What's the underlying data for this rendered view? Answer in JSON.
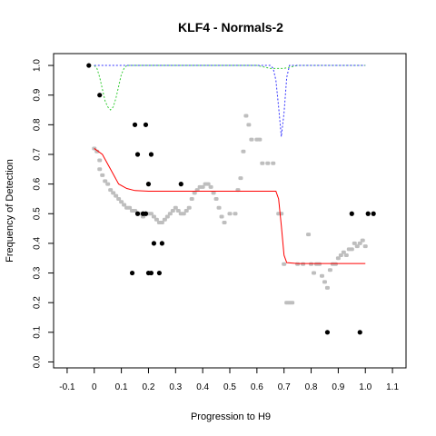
{
  "chart_data": {
    "type": "scatter",
    "title": "KLF4 - Normals-2",
    "xlabel": "Progression to H9",
    "ylabel": "Frequency of Detection",
    "xlim": [
      -0.15,
      1.15
    ],
    "ylim": [
      -0.02,
      1.04
    ],
    "x_ticks": [
      "-0.1",
      "0",
      "0.1",
      "0.2",
      "0.3",
      "0.4",
      "0.5",
      "0.6",
      "0.7",
      "0.8",
      "0.9",
      "1.0",
      "1.1"
    ],
    "x_tick_values": [
      -0.1,
      0,
      0.1,
      0.2,
      0.3,
      0.4,
      0.5,
      0.6,
      0.7,
      0.8,
      0.9,
      1.0,
      1.1
    ],
    "y_ticks": [
      "0.0",
      "0.1",
      "0.2",
      "0.3",
      "0.4",
      "0.5",
      "0.6",
      "0.7",
      "0.8",
      "0.9",
      "1.0"
    ],
    "y_tick_values": [
      0,
      0.1,
      0.2,
      0.3,
      0.4,
      0.5,
      0.6,
      0.7,
      0.8,
      0.9,
      1.0
    ],
    "grid": false,
    "colors": {
      "black_points": "#000000",
      "gray_points": "#bebebe",
      "red_fit": "#ff0000",
      "green_curve": "#33cc33",
      "blue_curve": "#3333ff"
    },
    "series": [
      {
        "kind": "points",
        "color": "black_points",
        "points": [
          [
            -0.02,
            1.0
          ],
          [
            0.02,
            0.9
          ],
          [
            0.15,
            0.8
          ],
          [
            0.19,
            0.8
          ],
          [
            0.16,
            0.7
          ],
          [
            0.21,
            0.7
          ],
          [
            0.2,
            0.6
          ],
          [
            0.32,
            0.6
          ],
          [
            0.16,
            0.5
          ],
          [
            0.18,
            0.5
          ],
          [
            0.19,
            0.5
          ],
          [
            0.22,
            0.4
          ],
          [
            0.25,
            0.4
          ],
          [
            0.14,
            0.3
          ],
          [
            0.2,
            0.3
          ],
          [
            0.21,
            0.3
          ],
          [
            0.24,
            0.3
          ],
          [
            0.95,
            0.5
          ],
          [
            1.01,
            0.5
          ],
          [
            1.03,
            0.5
          ],
          [
            0.86,
            0.1
          ],
          [
            0.98,
            0.1
          ]
        ]
      },
      {
        "kind": "points",
        "color": "gray_points",
        "points": [
          [
            0.0,
            0.72
          ],
          [
            0.01,
            0.71
          ],
          [
            0.02,
            0.68
          ],
          [
            0.02,
            0.65
          ],
          [
            0.03,
            0.63
          ],
          [
            0.04,
            0.61
          ],
          [
            0.05,
            0.6
          ],
          [
            0.06,
            0.58
          ],
          [
            0.07,
            0.57
          ],
          [
            0.08,
            0.56
          ],
          [
            0.09,
            0.55
          ],
          [
            0.1,
            0.54
          ],
          [
            0.11,
            0.53
          ],
          [
            0.12,
            0.52
          ],
          [
            0.13,
            0.52
          ],
          [
            0.14,
            0.51
          ],
          [
            0.15,
            0.51
          ],
          [
            0.16,
            0.5
          ],
          [
            0.17,
            0.5
          ],
          [
            0.18,
            0.49
          ],
          [
            0.19,
            0.5
          ],
          [
            0.2,
            0.5
          ],
          [
            0.21,
            0.5
          ],
          [
            0.22,
            0.49
          ],
          [
            0.23,
            0.48
          ],
          [
            0.24,
            0.47
          ],
          [
            0.25,
            0.47
          ],
          [
            0.26,
            0.48
          ],
          [
            0.27,
            0.49
          ],
          [
            0.28,
            0.5
          ],
          [
            0.29,
            0.51
          ],
          [
            0.3,
            0.52
          ],
          [
            0.31,
            0.51
          ],
          [
            0.32,
            0.5
          ],
          [
            0.33,
            0.5
          ],
          [
            0.34,
            0.51
          ],
          [
            0.35,
            0.52
          ],
          [
            0.36,
            0.55
          ],
          [
            0.37,
            0.57
          ],
          [
            0.38,
            0.58
          ],
          [
            0.39,
            0.59
          ],
          [
            0.4,
            0.59
          ],
          [
            0.41,
            0.6
          ],
          [
            0.42,
            0.6
          ],
          [
            0.43,
            0.59
          ],
          [
            0.44,
            0.57
          ],
          [
            0.45,
            0.55
          ],
          [
            0.46,
            0.52
          ],
          [
            0.47,
            0.49
          ],
          [
            0.48,
            0.47
          ],
          [
            0.5,
            0.5
          ],
          [
            0.52,
            0.5
          ],
          [
            0.53,
            0.58
          ],
          [
            0.54,
            0.62
          ],
          [
            0.55,
            0.71
          ],
          [
            0.56,
            0.83
          ],
          [
            0.57,
            0.8
          ],
          [
            0.58,
            0.75
          ],
          [
            0.6,
            0.75
          ],
          [
            0.61,
            0.75
          ],
          [
            0.62,
            0.67
          ],
          [
            0.64,
            0.67
          ],
          [
            0.66,
            0.67
          ],
          [
            0.68,
            0.5
          ],
          [
            0.69,
            0.5
          ],
          [
            0.7,
            0.33
          ],
          [
            0.71,
            0.2
          ],
          [
            0.72,
            0.2
          ],
          [
            0.73,
            0.2
          ],
          [
            0.75,
            0.33
          ],
          [
            0.77,
            0.33
          ],
          [
            0.79,
            0.43
          ],
          [
            0.8,
            0.33
          ],
          [
            0.81,
            0.3
          ],
          [
            0.82,
            0.33
          ],
          [
            0.83,
            0.33
          ],
          [
            0.84,
            0.29
          ],
          [
            0.85,
            0.27
          ],
          [
            0.86,
            0.25
          ],
          [
            0.87,
            0.31
          ],
          [
            0.88,
            0.33
          ],
          [
            0.89,
            0.33
          ],
          [
            0.9,
            0.35
          ],
          [
            0.91,
            0.36
          ],
          [
            0.92,
            0.37
          ],
          [
            0.93,
            0.36
          ],
          [
            0.94,
            0.38
          ],
          [
            0.95,
            0.38
          ],
          [
            0.96,
            0.4
          ],
          [
            0.97,
            0.39
          ],
          [
            0.98,
            0.4
          ],
          [
            0.99,
            0.41
          ],
          [
            1.0,
            0.39
          ]
        ]
      },
      {
        "kind": "line",
        "color": "red_fit",
        "points": [
          [
            0.0,
            0.72
          ],
          [
            0.03,
            0.7
          ],
          [
            0.06,
            0.65
          ],
          [
            0.09,
            0.6
          ],
          [
            0.12,
            0.585
          ],
          [
            0.15,
            0.578
          ],
          [
            0.2,
            0.576
          ],
          [
            0.3,
            0.576
          ],
          [
            0.4,
            0.576
          ],
          [
            0.5,
            0.576
          ],
          [
            0.6,
            0.576
          ],
          [
            0.67,
            0.576
          ],
          [
            0.68,
            0.55
          ],
          [
            0.69,
            0.46
          ],
          [
            0.7,
            0.36
          ],
          [
            0.71,
            0.335
          ],
          [
            0.75,
            0.332
          ],
          [
            0.85,
            0.332
          ],
          [
            0.95,
            0.332
          ],
          [
            1.0,
            0.332
          ]
        ]
      },
      {
        "kind": "line",
        "color": "green_curve",
        "points": [
          [
            0.0,
            1.0
          ],
          [
            0.01,
            0.99
          ],
          [
            0.02,
            0.96
          ],
          [
            0.03,
            0.92
          ],
          [
            0.04,
            0.88
          ],
          [
            0.05,
            0.86
          ],
          [
            0.06,
            0.85
          ],
          [
            0.07,
            0.86
          ],
          [
            0.08,
            0.89
          ],
          [
            0.09,
            0.93
          ],
          [
            0.1,
            0.97
          ],
          [
            0.11,
            0.99
          ],
          [
            0.12,
            1.0
          ],
          [
            0.3,
            1.0
          ],
          [
            0.5,
            1.0
          ],
          [
            0.6,
            1.0
          ],
          [
            0.65,
            0.99
          ],
          [
            0.7,
            0.99
          ],
          [
            0.75,
            1.0
          ],
          [
            1.0,
            1.0
          ]
        ]
      },
      {
        "kind": "line",
        "color": "blue_curve",
        "points": [
          [
            0.0,
            1.0
          ],
          [
            0.3,
            1.0
          ],
          [
            0.5,
            1.0
          ],
          [
            0.65,
            1.0
          ],
          [
            0.66,
            0.99
          ],
          [
            0.67,
            0.95
          ],
          [
            0.68,
            0.86
          ],
          [
            0.69,
            0.76
          ],
          [
            0.7,
            0.84
          ],
          [
            0.71,
            0.96
          ],
          [
            0.72,
            1.0
          ],
          [
            1.0,
            1.0
          ]
        ]
      }
    ]
  }
}
